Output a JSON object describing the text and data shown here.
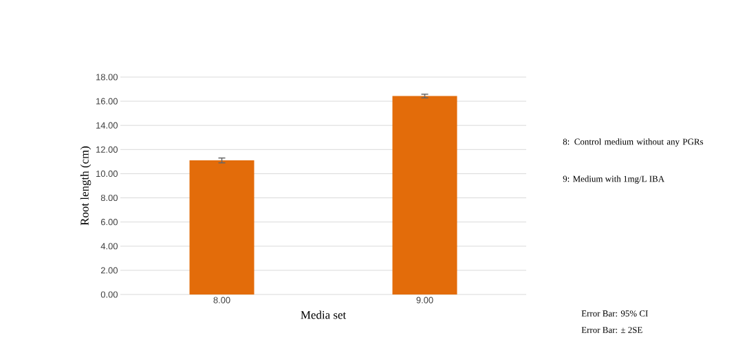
{
  "chart_data": {
    "type": "bar",
    "categories": [
      "8.00",
      "9.00"
    ],
    "values": [
      11.1,
      16.43
    ],
    "errors": [
      0.2,
      0.15
    ],
    "color": "#e36c0a",
    "xlabel": "Media set",
    "ylabel": "Root length (cm)",
    "ylim": [
      0,
      18
    ],
    "yticks": [
      {
        "value": 0,
        "label": "0.00"
      },
      {
        "value": 2,
        "label": "2.00"
      },
      {
        "value": 4,
        "label": "4.00"
      },
      {
        "value": 6,
        "label": "6.00"
      },
      {
        "value": 8,
        "label": "8.00"
      },
      {
        "value": 10,
        "label": "10.00"
      },
      {
        "value": 12,
        "label": "12.00"
      },
      {
        "value": 14,
        "label": "14.00"
      },
      {
        "value": 16,
        "label": "16.00"
      },
      {
        "value": 18,
        "label": "18.00"
      }
    ],
    "grid": "y",
    "annotations": [
      "8: Control medium without any PGRs",
      "9: Medium with 1mg/L IBA",
      "Error Bar: 95% CI",
      "Error Bar: ± 2SE"
    ]
  }
}
